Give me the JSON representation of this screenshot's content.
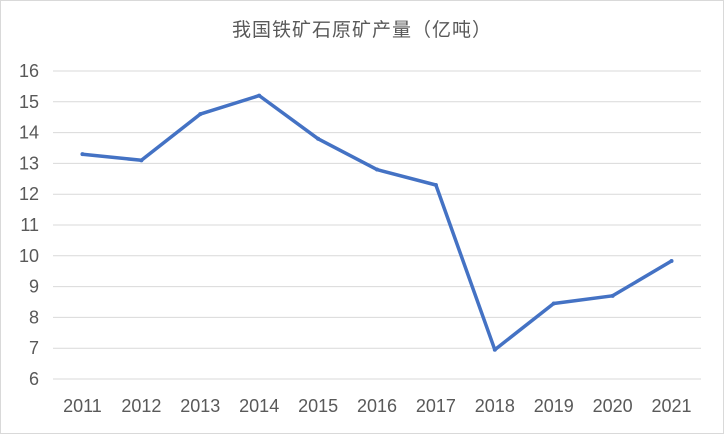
{
  "chart_data": {
    "type": "line",
    "title": "我国铁矿石原矿产量（亿吨）",
    "categories": [
      "2011",
      "2012",
      "2013",
      "2014",
      "2015",
      "2016",
      "2017",
      "2018",
      "2019",
      "2020",
      "2021"
    ],
    "series": [
      {
        "values": [
          13.3,
          13.1,
          14.6,
          15.2,
          13.8,
          12.8,
          12.3,
          6.95,
          8.45,
          8.7,
          9.83
        ]
      }
    ],
    "ylim": [
      6,
      16
    ],
    "yticks": [
      6,
      7,
      8,
      9,
      10,
      11,
      12,
      13,
      14,
      15,
      16
    ],
    "grid": true,
    "legend": "none",
    "colors": {
      "line": "#4472c4",
      "grid": "#d9d9d9",
      "text": "#595959"
    }
  }
}
